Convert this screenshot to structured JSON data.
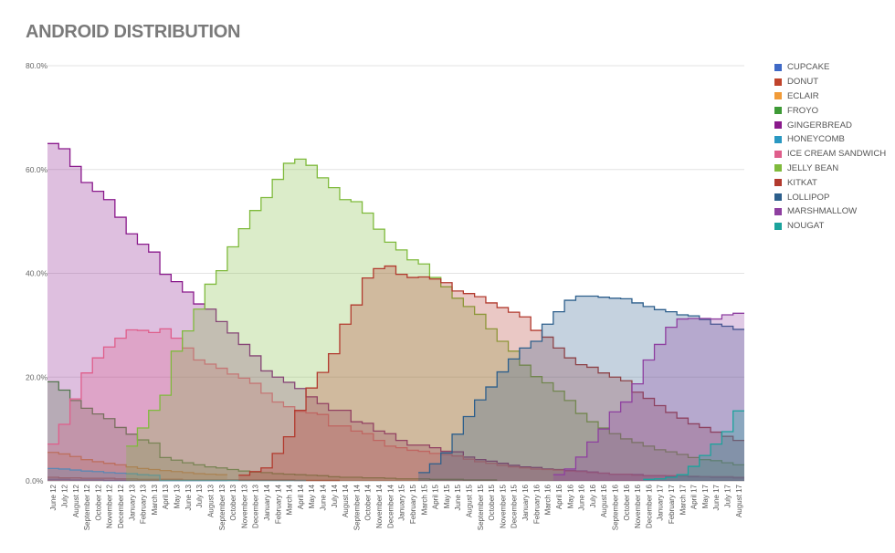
{
  "title": "ANDROID DISTRIBUTION",
  "chart_data": {
    "type": "area",
    "title": "ANDROID DISTRIBUTION",
    "xlabel": "",
    "ylabel": "",
    "ylim": [
      0,
      80
    ],
    "y_ticks": [
      "0.0%",
      "20.0%",
      "40.0%",
      "60.0%",
      "80.0%"
    ],
    "grid": true,
    "legend_position": "right",
    "x_tick_labels": [
      "June 12",
      "July 12",
      "August 12",
      "September 12",
      "October 12",
      "November 12",
      "December 12",
      "January 13",
      "February 13",
      "March 13",
      "April 13",
      "May 13",
      "June 13",
      "July 13",
      "August 13",
      "September 13",
      "October 13",
      "November 13",
      "December 13",
      "January 14",
      "February 14",
      "March 14",
      "April 14",
      "May 14",
      "June 14",
      "July 14",
      "August 14",
      "September 14",
      "October 14",
      "November 14",
      "December 14",
      "January 15",
      "February 15",
      "March 15",
      "April 15",
      "May 15",
      "June 15",
      "August 15",
      "September 15",
      "October 15",
      "November 15",
      "December 15",
      "January 16",
      "February 16",
      "March 16",
      "April 16",
      "May 16",
      "June 16",
      "July 16",
      "August 16",
      "September 16",
      "October 16",
      "November 16",
      "December 16",
      "January 17",
      "February 17",
      "March 17",
      "April 17",
      "May 17",
      "June 17",
      "July 17",
      "August 17"
    ],
    "series": [
      {
        "name": "CUPCAKE",
        "color": "#3f69c6",
        "values": [
          0.3,
          0.3,
          0.2,
          0.2,
          0.2,
          0.1,
          0.1,
          0.1,
          0.1,
          0.1,
          0.1,
          0.1,
          0.1,
          0.1,
          0.1,
          0.1,
          null,
          null,
          null,
          null,
          null,
          null,
          null,
          null,
          null,
          null,
          null,
          null,
          null,
          null,
          null,
          null,
          null,
          null,
          null,
          null,
          null,
          null,
          null,
          null,
          null,
          null,
          null,
          null,
          null,
          null,
          null,
          null,
          null,
          null,
          null,
          null,
          null,
          null,
          null,
          null,
          null,
          null,
          null,
          null,
          null,
          null
        ]
      },
      {
        "name": "DONUT",
        "color": "#c0442c",
        "values": [
          0.7,
          0.6,
          0.6,
          0.5,
          0.5,
          0.5,
          0.4,
          0.4,
          0.3,
          0.3,
          0.3,
          0.3,
          0.2,
          0.2,
          0.2,
          0.2,
          0.2,
          0.2,
          0.2,
          0.2,
          0.2,
          0.2,
          0.1,
          0.1,
          0.1,
          0.1,
          null,
          null,
          null,
          null,
          null,
          null,
          null,
          null,
          null,
          null,
          null,
          null,
          null,
          null,
          null,
          null,
          null,
          null,
          null,
          null,
          null,
          null,
          null,
          null,
          null,
          null,
          null,
          null,
          null,
          null,
          null,
          null,
          null,
          null,
          null,
          null
        ]
      },
      {
        "name": "ECLAIR",
        "color": "#f19b38",
        "values": [
          5.5,
          5.2,
          4.7,
          4.1,
          3.7,
          3.4,
          3.1,
          2.7,
          2.4,
          2.2,
          2.0,
          1.8,
          1.6,
          1.4,
          1.3,
          1.2,
          null,
          null,
          null,
          null,
          null,
          null,
          null,
          null,
          null,
          null,
          null,
          null,
          null,
          null,
          null,
          null,
          null,
          null,
          null,
          null,
          null,
          null,
          null,
          null,
          null,
          null,
          null,
          null,
          null,
          null,
          null,
          null,
          null,
          null,
          null,
          null,
          null,
          null,
          null,
          null,
          null,
          null,
          null,
          null,
          null,
          null
        ]
      },
      {
        "name": "FROYO",
        "color": "#3e9a36",
        "values": [
          19.1,
          17.5,
          15.5,
          14.0,
          12.9,
          12.0,
          10.3,
          9.0,
          7.9,
          7.3,
          4.5,
          4.0,
          3.5,
          3.1,
          2.7,
          2.5,
          2.2,
          1.9,
          1.7,
          1.6,
          1.4,
          1.3,
          1.2,
          1.1,
          1.0,
          0.8,
          0.7,
          0.7,
          0.6,
          0.6,
          0.5,
          0.4,
          0.4,
          0.4,
          0.3,
          0.3,
          0.3,
          0.2,
          0.2,
          0.2,
          null,
          null,
          null,
          null,
          null,
          null,
          null,
          null,
          null,
          null,
          null,
          null,
          null,
          null,
          null,
          null,
          null,
          null,
          null,
          null,
          null,
          null
        ]
      },
      {
        "name": "GINGERBREAD",
        "color": "#8a1a8c",
        "values": [
          65.0,
          64.0,
          60.6,
          57.5,
          55.8,
          54.2,
          50.8,
          47.6,
          45.6,
          44.1,
          39.8,
          38.4,
          36.4,
          34.1,
          33.1,
          30.7,
          28.5,
          26.3,
          24.1,
          21.2,
          20.0,
          19.0,
          17.8,
          16.2,
          14.9,
          13.6,
          13.6,
          11.4,
          11.1,
          9.6,
          9.1,
          7.8,
          6.9,
          6.9,
          6.4,
          5.7,
          5.6,
          4.6,
          4.1,
          3.8,
          3.4,
          3.0,
          2.7,
          2.6,
          2.3,
          2.2,
          2.0,
          1.9,
          1.7,
          1.5,
          1.3,
          1.3,
          1.2,
          1.0,
          1.0,
          0.9,
          0.9,
          0.8,
          0.8,
          0.7,
          0.7,
          0.6
        ]
      },
      {
        "name": "HONEYCOMB",
        "color": "#2a98c2",
        "values": [
          2.4,
          2.3,
          2.1,
          1.9,
          1.8,
          1.6,
          1.5,
          1.4,
          1.2,
          1.1,
          0.1,
          0.1,
          0.1,
          0.1,
          0.1,
          0.1,
          0.1,
          0.1,
          0.1,
          0.1,
          0.1,
          0.1,
          0.1,
          null,
          null,
          null,
          null,
          null,
          null,
          null,
          null,
          null,
          null,
          null,
          null,
          null,
          null,
          null,
          null,
          null,
          null,
          null,
          null,
          null,
          null,
          null,
          null,
          null,
          null,
          null,
          null,
          null,
          null,
          null,
          null,
          null,
          null,
          null,
          null,
          null,
          null,
          null
        ]
      },
      {
        "name": "ICE CREAM SANDWICH",
        "color": "#df5e8b",
        "values": [
          7.1,
          10.9,
          15.8,
          20.8,
          23.7,
          25.8,
          27.5,
          29.1,
          29.0,
          28.6,
          29.3,
          27.5,
          25.6,
          23.3,
          22.5,
          21.7,
          20.6,
          19.8,
          18.8,
          16.9,
          15.2,
          14.3,
          13.4,
          13.1,
          12.8,
          10.6,
          10.6,
          9.6,
          9.1,
          7.8,
          6.7,
          6.4,
          5.9,
          5.7,
          5.3,
          5.1,
          4.8,
          4.2,
          3.7,
          3.4,
          3.0,
          2.7,
          2.5,
          2.3,
          2.2,
          2.1,
          1.9,
          1.8,
          1.6,
          1.5,
          1.3,
          1.3,
          1.1,
          1.0,
          1.0,
          1.0,
          0.9,
          0.9,
          0.8,
          0.8,
          0.8,
          0.7
        ]
      },
      {
        "name": "JELLY BEAN",
        "color": "#7fba3c",
        "values": [
          null,
          null,
          null,
          null,
          null,
          null,
          null,
          6.7,
          10.2,
          13.6,
          16.5,
          25.0,
          28.9,
          33.1,
          37.9,
          40.5,
          45.1,
          48.6,
          52.1,
          54.6,
          58.1,
          61.2,
          62.0,
          60.8,
          58.4,
          56.5,
          54.2,
          53.8,
          51.6,
          48.5,
          46.0,
          44.5,
          42.6,
          41.8,
          39.2,
          37.4,
          35.2,
          33.6,
          32.1,
          29.3,
          26.9,
          25.0,
          22.3,
          20.1,
          18.9,
          17.3,
          15.5,
          13.0,
          11.4,
          10.2,
          9.1,
          8.1,
          7.4,
          6.7,
          6.0,
          5.6,
          5.1,
          4.5,
          4.1,
          3.9,
          3.5,
          3.1
        ]
      },
      {
        "name": "KITKAT",
        "color": "#b23a2e",
        "values": [
          null,
          null,
          null,
          null,
          null,
          null,
          null,
          null,
          null,
          null,
          null,
          null,
          null,
          null,
          null,
          null,
          null,
          1.1,
          1.8,
          2.5,
          5.3,
          8.5,
          13.6,
          17.9,
          20.9,
          24.5,
          30.2,
          33.9,
          39.1,
          40.9,
          41.4,
          39.8,
          39.2,
          39.3,
          38.9,
          38.2,
          36.6,
          36.1,
          35.5,
          34.3,
          33.4,
          32.5,
          31.6,
          29.0,
          27.7,
          25.6,
          23.7,
          22.4,
          21.9,
          20.8,
          20.0,
          19.3,
          17.1,
          15.9,
          14.5,
          13.2,
          12.1,
          11.0,
          10.3,
          9.4,
          8.6,
          7.8
        ]
      },
      {
        "name": "LOLLIPOP",
        "color": "#2d5f8c",
        "values": [
          null,
          null,
          null,
          null,
          null,
          null,
          null,
          null,
          null,
          null,
          null,
          null,
          null,
          null,
          null,
          null,
          null,
          null,
          null,
          null,
          null,
          null,
          null,
          null,
          null,
          null,
          null,
          null,
          null,
          null,
          null,
          null,
          null,
          1.6,
          3.3,
          5.4,
          9.0,
          12.4,
          15.6,
          18.1,
          21.0,
          23.5,
          25.6,
          26.9,
          30.2,
          32.6,
          34.8,
          35.6,
          35.6,
          35.4,
          35.2,
          35.1,
          34.3,
          33.6,
          33.0,
          32.6,
          32.0,
          31.8,
          31.1,
          30.2,
          29.8,
          29.2
        ]
      },
      {
        "name": "MARSHMALLOW",
        "color": "#8e3fa0",
        "values": [
          null,
          null,
          null,
          null,
          null,
          null,
          null,
          null,
          null,
          null,
          null,
          null,
          null,
          null,
          null,
          null,
          null,
          null,
          null,
          null,
          null,
          null,
          null,
          null,
          null,
          null,
          null,
          null,
          null,
          null,
          null,
          null,
          null,
          null,
          null,
          null,
          null,
          null,
          null,
          null,
          null,
          null,
          null,
          null,
          null,
          1.2,
          2.3,
          4.6,
          7.5,
          10.0,
          13.3,
          15.2,
          18.7,
          23.3,
          26.3,
          29.6,
          31.2,
          31.3,
          31.3,
          31.2,
          32.0,
          32.3
        ]
      },
      {
        "name": "NOUGAT",
        "color": "#1ba39c",
        "values": [
          null,
          null,
          null,
          null,
          null,
          null,
          null,
          null,
          null,
          null,
          null,
          null,
          null,
          null,
          null,
          null,
          null,
          null,
          null,
          null,
          null,
          null,
          null,
          null,
          null,
          null,
          null,
          null,
          null,
          null,
          null,
          null,
          null,
          null,
          null,
          null,
          null,
          null,
          null,
          null,
          null,
          null,
          null,
          null,
          null,
          null,
          null,
          null,
          null,
          null,
          null,
          null,
          null,
          0.3,
          0.4,
          0.7,
          1.2,
          2.8,
          4.9,
          7.1,
          9.5,
          13.5
        ]
      }
    ]
  }
}
